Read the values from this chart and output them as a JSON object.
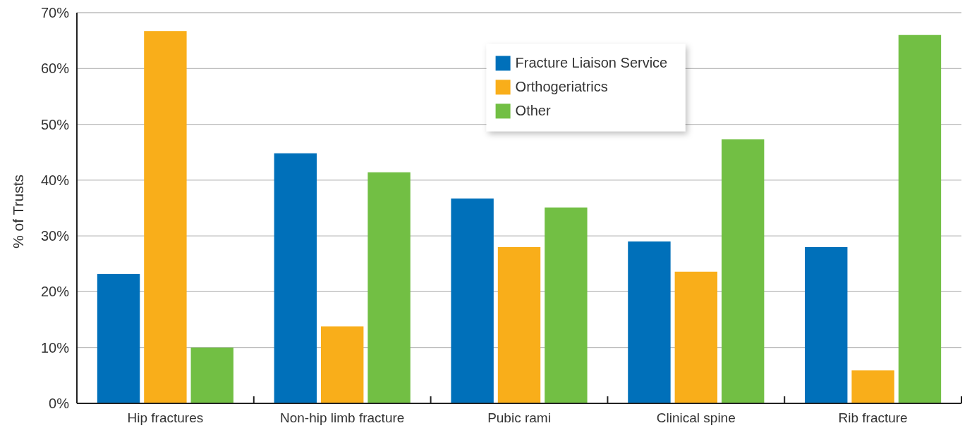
{
  "chart_data": {
    "type": "bar",
    "ylabel": "% of Trusts",
    "categories": [
      "Hip fractures",
      "Non-hip limb fracture",
      "Pubic rami",
      "Clinical spine",
      "Rib fracture"
    ],
    "series": [
      {
        "name": "Fracture Liaison Service",
        "color": "#0070ba",
        "values": [
          23.2,
          44.8,
          36.7,
          29.0,
          28.0
        ]
      },
      {
        "name": "Orthogeriatrics",
        "color": "#f9ae1a",
        "values": [
          66.7,
          13.8,
          28.0,
          23.6,
          5.9
        ]
      },
      {
        "name": "Other",
        "color": "#72bf44",
        "values": [
          10.0,
          41.4,
          35.1,
          47.3,
          66.0
        ]
      }
    ],
    "ylim": [
      0,
      70
    ],
    "yticks": [
      {
        "value": 0,
        "label": "0%"
      },
      {
        "value": 10,
        "label": "10%"
      },
      {
        "value": 20,
        "label": "20%"
      },
      {
        "value": 30,
        "label": "30%"
      },
      {
        "value": 40,
        "label": "40%"
      },
      {
        "value": 50,
        "label": "50%"
      },
      {
        "value": 60,
        "label": "60%"
      },
      {
        "value": 70,
        "label": "70%"
      }
    ],
    "grid": "y",
    "legend": "top"
  }
}
